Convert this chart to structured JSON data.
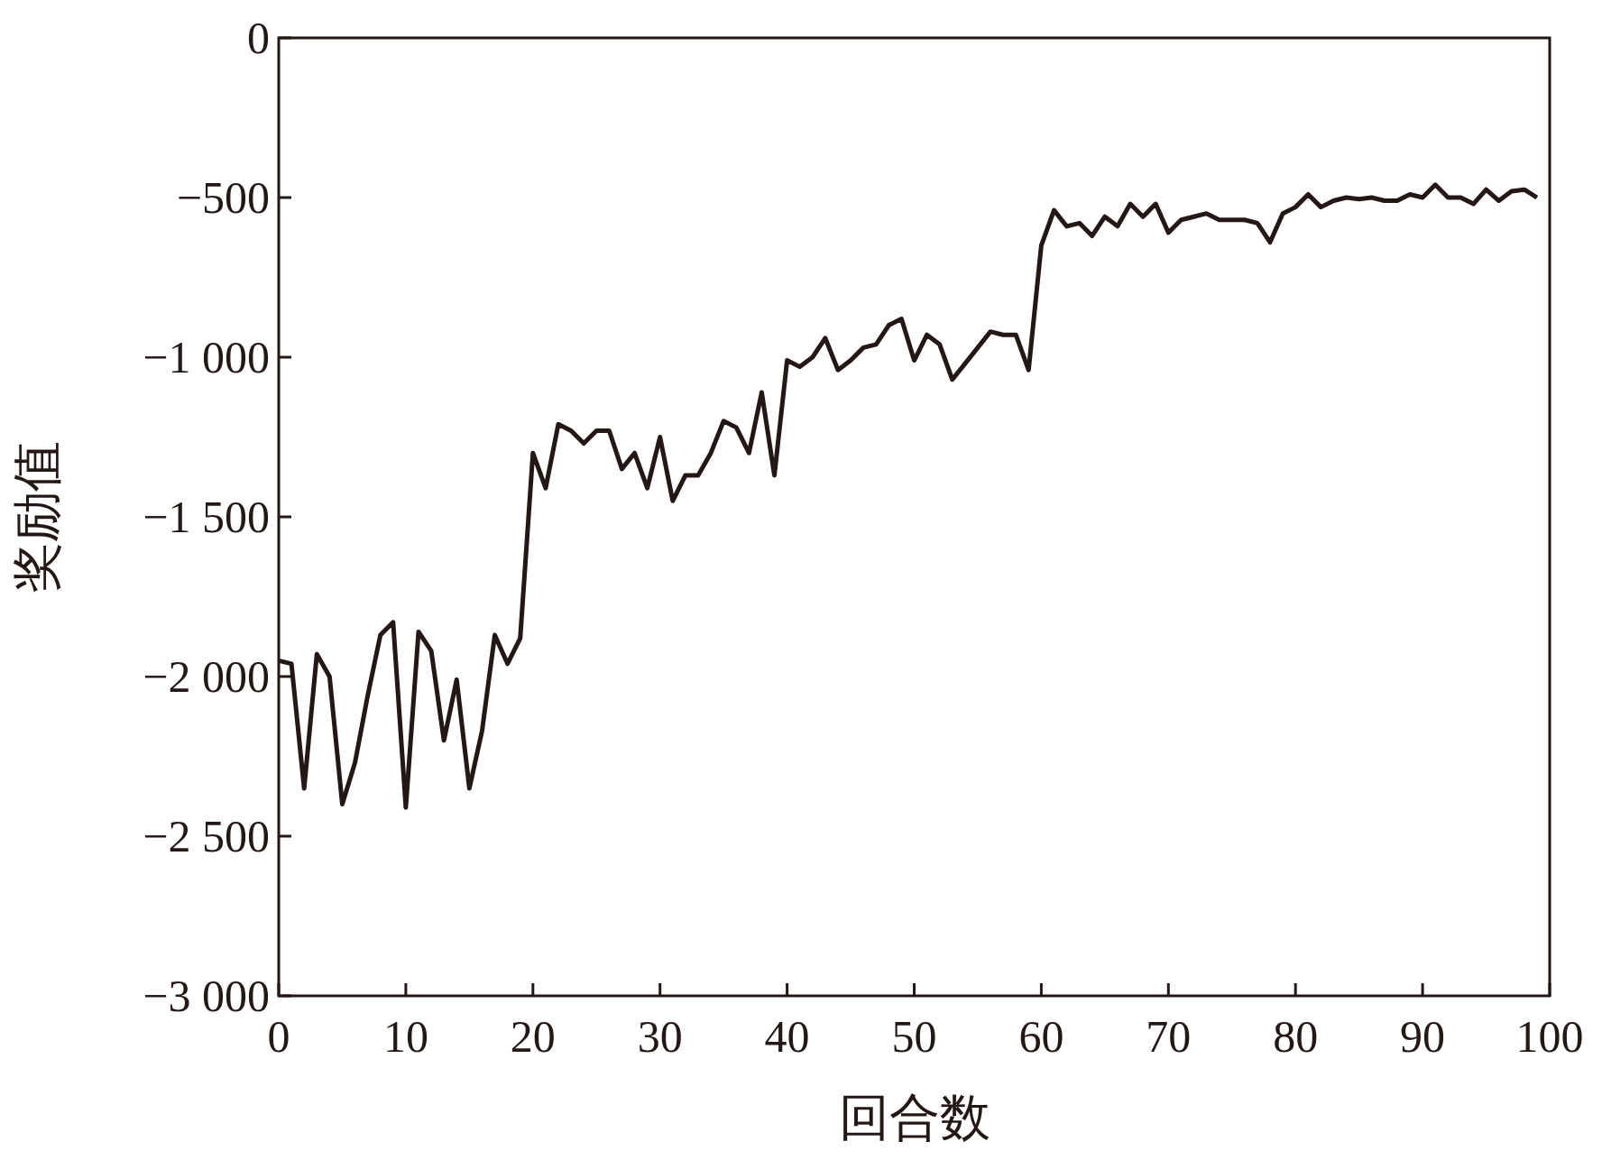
{
  "chart_data": {
    "type": "line",
    "xlabel": "回合数",
    "ylabel": "奖励值",
    "x": [
      0,
      1,
      2,
      3,
      4,
      5,
      6,
      7,
      8,
      9,
      10,
      11,
      12,
      13,
      14,
      15,
      16,
      17,
      18,
      19,
      20,
      21,
      22,
      23,
      24,
      25,
      26,
      27,
      28,
      29,
      30,
      31,
      32,
      33,
      34,
      35,
      36,
      37,
      38,
      39,
      40,
      41,
      42,
      43,
      44,
      45,
      46,
      47,
      48,
      49,
      50,
      51,
      52,
      53,
      54,
      55,
      56,
      57,
      58,
      59,
      60,
      61,
      62,
      63,
      64,
      65,
      66,
      67,
      68,
      69,
      70,
      71,
      72,
      73,
      74,
      75,
      76,
      77,
      78,
      79,
      80,
      81,
      82,
      83,
      84,
      85,
      86,
      87,
      88,
      89,
      90,
      91,
      92,
      93,
      94,
      95,
      96,
      97,
      98,
      99
    ],
    "series": [
      {
        "color": "#231815",
        "values": [
          -1950,
          -1960,
          -2350,
          -1930,
          -2000,
          -2400,
          -2270,
          -2060,
          -1870,
          -1830,
          -2410,
          -1860,
          -1920,
          -2200,
          -2010,
          -2350,
          -2170,
          -1870,
          -1960,
          -1880,
          -1300,
          -1410,
          -1210,
          -1230,
          -1270,
          -1230,
          -1230,
          -1350,
          -1300,
          -1410,
          -1250,
          -1450,
          -1370,
          -1370,
          -1300,
          -1200,
          -1220,
          -1300,
          -1110,
          -1370,
          -1010,
          -1030,
          -1000,
          -940,
          -1040,
          -1010,
          -970,
          -960,
          -900,
          -880,
          -1010,
          -930,
          -960,
          -1070,
          -1020,
          -970,
          -920,
          -930,
          -930,
          -1040,
          -650,
          -540,
          -590,
          -580,
          -620,
          -560,
          -590,
          -520,
          -560,
          -520,
          -610,
          -570,
          -560,
          -550,
          -570,
          -570,
          -570,
          -580,
          -640,
          -550,
          -530,
          -490,
          -530,
          -510,
          -500,
          -505,
          -500,
          -510,
          -510,
          -490,
          -500,
          -460,
          -500,
          -500,
          -520,
          -475,
          -510,
          -480,
          -475,
          -500
        ]
      }
    ],
    "xlim": [
      0,
      100
    ],
    "ylim": [
      -3000,
      0
    ],
    "xticks": [
      0,
      10,
      20,
      30,
      40,
      50,
      60,
      70,
      80,
      90,
      100
    ],
    "yticks": [
      {
        "value": -3000,
        "label": "−3 000"
      },
      {
        "value": -2500,
        "label": "−2 500"
      },
      {
        "value": -2000,
        "label": "−2 000"
      },
      {
        "value": -1500,
        "label": "−1 500"
      },
      {
        "value": -1000,
        "label": "−1 000"
      },
      {
        "value": -500,
        "label": "−500"
      },
      0
    ],
    "grid": false,
    "marker": "none",
    "line_style": "solid"
  }
}
